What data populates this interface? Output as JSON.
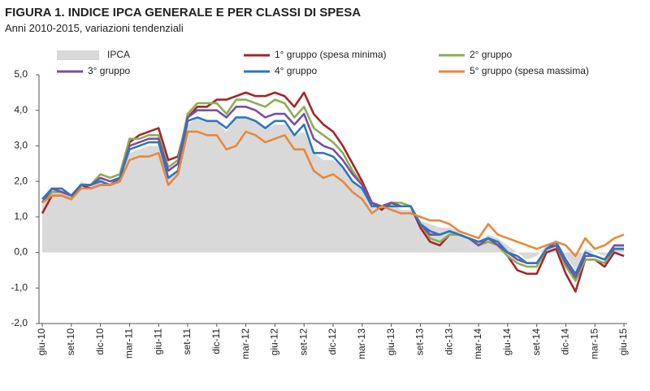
{
  "chart_data": {
    "type": "line",
    "title": "FIGURA 1. INDICE IPCA GENERALE E PER CLASSI DI SPESA",
    "subtitle": "Anni 2010-2015, variazioni tendenziali",
    "categories": [
      "giu-10",
      null,
      null,
      "set-10",
      null,
      null,
      "dic-10",
      null,
      null,
      "mar-11",
      null,
      null,
      "giu-11",
      null,
      null,
      "set-11",
      null,
      null,
      "dic-11",
      null,
      null,
      "mar-12",
      null,
      null,
      "giu-12",
      null,
      null,
      "set-12",
      null,
      null,
      "dic-12",
      null,
      null,
      "mar-13",
      null,
      null,
      "giu-13",
      null,
      null,
      "set-13",
      null,
      null,
      "dic-13",
      null,
      null,
      "mar-14",
      null,
      null,
      "giu-14",
      null,
      null,
      "set-14",
      null,
      null,
      "dic-14",
      null,
      null,
      "mar-15",
      null,
      null,
      "giu-15"
    ],
    "ylim": [
      -2,
      5
    ],
    "yticks": [
      {
        "value": -2,
        "label": "-2,0"
      },
      {
        "value": -1,
        "label": "-1,0"
      },
      {
        "value": 0,
        "label": "0,0"
      },
      {
        "value": 1,
        "label": "1,0"
      },
      {
        "value": 2,
        "label": "2,0"
      },
      {
        "value": 3,
        "label": "3,0"
      },
      {
        "value": 4,
        "label": "4,0"
      },
      {
        "value": 5,
        "label": "5,0"
      }
    ],
    "series": [
      {
        "name": "IPCA",
        "style": "area",
        "color": "#d9d9d9",
        "values": [
          1.5,
          1.8,
          1.8,
          1.6,
          2.0,
          1.9,
          2.1,
          1.9,
          2.1,
          2.8,
          2.9,
          3.0,
          3.0,
          2.1,
          2.3,
          3.6,
          3.8,
          3.7,
          3.7,
          3.4,
          3.8,
          3.8,
          3.7,
          3.5,
          3.6,
          3.6,
          3.3,
          3.4,
          2.8,
          2.6,
          2.6,
          2.4,
          2.0,
          1.8,
          1.3,
          1.3,
          1.4,
          1.2,
          1.2,
          0.9,
          0.8,
          0.7,
          0.7,
          0.6,
          0.4,
          0.3,
          0.5,
          0.4,
          0.2,
          0.0,
          -0.2,
          -0.1,
          0.2,
          0.3,
          -0.1,
          -0.5,
          0.1,
          0.0,
          -0.1,
          0.2,
          0.2
        ]
      },
      {
        "name": "1° gruppo (spesa minima)",
        "style": "line",
        "color": "#a0282a",
        "values": [
          1.1,
          1.6,
          1.6,
          1.5,
          1.9,
          1.8,
          1.9,
          1.9,
          2.0,
          3.1,
          3.3,
          3.4,
          3.5,
          2.6,
          2.7,
          3.8,
          4.1,
          4.1,
          4.3,
          4.3,
          4.4,
          4.5,
          4.4,
          4.4,
          4.5,
          4.4,
          4.1,
          4.5,
          3.9,
          3.6,
          3.4,
          3.0,
          2.5,
          2.0,
          1.4,
          1.2,
          1.4,
          1.3,
          1.3,
          0.7,
          0.3,
          0.2,
          0.5,
          0.5,
          0.4,
          0.3,
          0.4,
          0.2,
          -0.1,
          -0.5,
          -0.6,
          -0.6,
          0.0,
          0.1,
          -0.6,
          -1.1,
          -0.2,
          -0.2,
          -0.4,
          0.0,
          -0.1
        ]
      },
      {
        "name": "2° gruppo",
        "style": "line",
        "color": "#8cad55",
        "values": [
          1.4,
          1.7,
          1.7,
          1.6,
          1.9,
          1.9,
          2.2,
          2.1,
          2.2,
          3.2,
          3.2,
          3.3,
          3.3,
          2.4,
          2.6,
          3.9,
          4.2,
          4.2,
          4.2,
          3.9,
          4.3,
          4.3,
          4.2,
          4.1,
          4.3,
          4.2,
          3.8,
          4.1,
          3.5,
          3.3,
          3.1,
          2.8,
          2.3,
          1.9,
          1.4,
          1.3,
          1.4,
          1.4,
          1.3,
          0.8,
          0.4,
          0.3,
          0.5,
          0.5,
          0.4,
          0.2,
          0.3,
          0.2,
          -0.1,
          -0.3,
          -0.4,
          -0.4,
          0.1,
          0.2,
          -0.4,
          -0.8,
          -0.2,
          -0.2,
          -0.3,
          0.1,
          0.1
        ]
      },
      {
        "name": "3° gruppo",
        "style": "line",
        "color": "#7a4fa0",
        "values": [
          1.4,
          1.8,
          1.7,
          1.6,
          1.9,
          1.9,
          2.1,
          2.0,
          2.1,
          3.0,
          3.1,
          3.2,
          3.2,
          2.3,
          2.5,
          3.8,
          4.0,
          4.0,
          4.0,
          3.8,
          4.1,
          4.1,
          4.0,
          3.8,
          3.9,
          3.9,
          3.6,
          3.9,
          3.2,
          3.0,
          2.9,
          2.6,
          2.2,
          1.9,
          1.4,
          1.3,
          1.4,
          1.3,
          1.3,
          0.8,
          0.5,
          0.5,
          0.6,
          0.5,
          0.4,
          0.2,
          0.4,
          0.2,
          0.0,
          -0.2,
          -0.3,
          -0.3,
          0.1,
          0.2,
          -0.3,
          -0.7,
          -0.1,
          -0.1,
          -0.2,
          0.2,
          0.2
        ]
      },
      {
        "name": "4° gruppo",
        "style": "line",
        "color": "#2e75c0",
        "values": [
          1.5,
          1.8,
          1.8,
          1.6,
          1.9,
          1.9,
          2.0,
          1.9,
          2.1,
          2.9,
          3.0,
          3.1,
          3.1,
          2.1,
          2.3,
          3.7,
          3.8,
          3.7,
          3.7,
          3.5,
          3.8,
          3.8,
          3.7,
          3.5,
          3.7,
          3.7,
          3.3,
          3.6,
          2.8,
          2.8,
          2.7,
          2.4,
          2.0,
          1.8,
          1.3,
          1.3,
          1.3,
          1.3,
          1.3,
          0.8,
          0.6,
          0.5,
          0.6,
          0.5,
          0.4,
          0.3,
          0.4,
          0.3,
          0.0,
          -0.1,
          -0.3,
          -0.3,
          0.1,
          0.3,
          -0.2,
          -0.6,
          0.0,
          -0.1,
          -0.2,
          0.1,
          0.1
        ]
      },
      {
        "name": "5° gruppo (spesa massima)",
        "style": "line",
        "color": "#e8883a",
        "values": [
          1.4,
          1.6,
          1.6,
          1.5,
          1.8,
          1.8,
          1.9,
          1.9,
          2.0,
          2.6,
          2.7,
          2.7,
          2.8,
          1.9,
          2.2,
          3.4,
          3.4,
          3.3,
          3.3,
          2.9,
          3.0,
          3.4,
          3.3,
          3.1,
          3.2,
          3.3,
          2.9,
          2.9,
          2.3,
          2.1,
          2.2,
          2.0,
          1.7,
          1.5,
          1.1,
          1.3,
          1.2,
          1.1,
          1.1,
          1.0,
          0.9,
          0.9,
          0.8,
          0.6,
          0.5,
          0.4,
          0.8,
          0.5,
          0.4,
          0.3,
          0.2,
          0.1,
          0.2,
          0.3,
          0.2,
          -0.1,
          0.4,
          0.1,
          0.2,
          0.4,
          0.5
        ]
      }
    ]
  }
}
